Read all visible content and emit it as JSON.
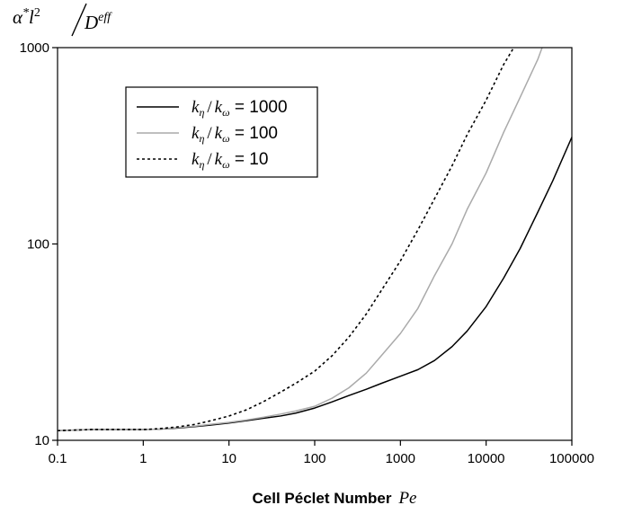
{
  "chart_data": {
    "type": "line",
    "x_scale": "log",
    "y_scale": "log",
    "xlim": [
      0.1,
      100000
    ],
    "ylim": [
      10,
      1000
    ],
    "x_ticks": [
      0.1,
      1,
      10,
      100,
      1000,
      10000,
      100000
    ],
    "x_tick_labels": [
      "0.1",
      "1",
      "10",
      "100",
      "1000",
      "10000",
      "100000"
    ],
    "y_ticks": [
      10,
      100,
      1000
    ],
    "y_tick_labels": [
      "10",
      "100",
      "1000"
    ],
    "xlabel": "Cell Péclet Number",
    "xlabel_symbol": "Pe",
    "ylabel": {
      "alpha": "α",
      "star": "*",
      "l": "l",
      "two": "2",
      "slash": "/",
      "d": "D",
      "eff": "eff"
    },
    "grid": false,
    "legend_position": "top-left",
    "series": [
      {
        "label_k1": "k",
        "label_sub1": "η",
        "label_slash": "/",
        "label_k2": "k",
        "label_sub2": "ω",
        "label_value": " = 1000",
        "color": "#000000",
        "style": "solid",
        "x": [
          0.1,
          0.25,
          0.5,
          1,
          1.5,
          2.5,
          4,
          6,
          10,
          16,
          25,
          40,
          60,
          100,
          160,
          250,
          400,
          600,
          1000,
          1600,
          2500,
          4000,
          6000,
          10000,
          16000,
          25000,
          40000,
          60000,
          100000
        ],
        "y": [
          11.2,
          11.35,
          11.35,
          11.35,
          11.4,
          11.55,
          11.75,
          11.95,
          12.25,
          12.6,
          12.95,
          13.3,
          13.75,
          14.6,
          15.7,
          16.9,
          18.2,
          19.5,
          21.2,
          22.9,
          25.5,
          30,
          36,
          48,
          67,
          95,
          145,
          210,
          350
        ]
      },
      {
        "label_k1": "k",
        "label_sub1": "η",
        "label_slash": "/",
        "label_k2": "k",
        "label_sub2": "ω",
        "label_value": " = 100",
        "color": "#aaaaaa",
        "style": "solid",
        "x": [
          0.1,
          0.25,
          0.5,
          1,
          1.5,
          2.5,
          4,
          6,
          10,
          16,
          25,
          40,
          60,
          100,
          160,
          250,
          400,
          600,
          1000,
          1600,
          2500,
          4000,
          6000,
          10000,
          16000,
          25000,
          40000,
          45000
        ],
        "y": [
          11.2,
          11.35,
          11.35,
          11.35,
          11.4,
          11.6,
          11.8,
          12.05,
          12.35,
          12.7,
          13.1,
          13.6,
          14.1,
          14.9,
          16.4,
          18.5,
          22,
          27,
          35,
          47,
          69,
          100,
          150,
          230,
          370,
          560,
          870,
          1000
        ]
      },
      {
        "label_k1": "k",
        "label_sub1": "η",
        "label_slash": "/",
        "label_k2": "k",
        "label_sub2": "ω",
        "label_value": " = 10",
        "color": "#000000",
        "style": "dotted",
        "x": [
          0.1,
          0.25,
          0.5,
          1,
          1.5,
          2.5,
          4,
          6,
          10,
          16,
          25,
          40,
          60,
          100,
          160,
          250,
          400,
          600,
          1000,
          1600,
          2500,
          4000,
          6000,
          10000,
          16000,
          21000
        ],
        "y": [
          11.2,
          11.35,
          11.35,
          11.35,
          11.45,
          11.7,
          12.05,
          12.55,
          13.3,
          14.3,
          15.7,
          17.6,
          19.5,
          22.5,
          27,
          33.5,
          44,
          58,
          82,
          118,
          170,
          250,
          360,
          540,
          820,
          1000
        ]
      }
    ]
  }
}
